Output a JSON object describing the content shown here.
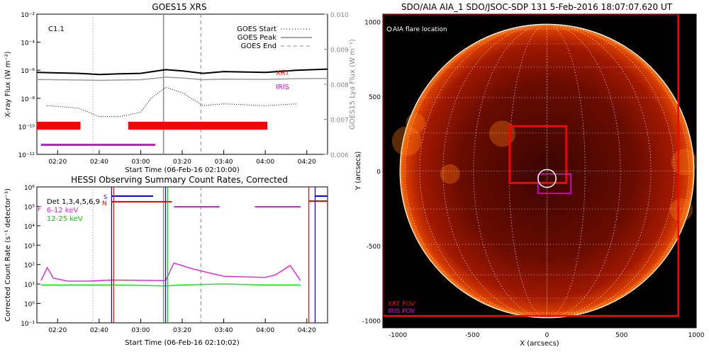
{
  "goes": {
    "title": "GOES15 XRS",
    "xlabel": "Start Time (06-Feb-16 02:10:00)",
    "ylabel_left": "X-ray Flux (W m⁻²)",
    "ylabel_right": "GOES15 Lya Flux (W m⁻²)",
    "flare_class": "C1.1",
    "xtick_labels": [
      "02:20",
      "02:40",
      "03:00",
      "03:20",
      "03:40",
      "04:00",
      "04:20"
    ],
    "ytick_left": [
      "10⁻²",
      "10⁻⁴",
      "10⁻⁶",
      "10⁻⁸",
      "10⁻¹⁰",
      "10⁻¹²"
    ],
    "ytick_right": [
      "0.010",
      "0.009",
      "0.008",
      "0.007",
      "0.006"
    ],
    "legend": {
      "start": "GOES Start",
      "peak": "GOES Peak",
      "end": "GOES End"
    },
    "label_xrt": "XRT",
    "label_iris": "IRIS"
  },
  "hessi": {
    "title": "HESSI Observing Summary Count Rates, Corrected",
    "xlabel": "Start Time (06-Feb-16 02:10:02)",
    "ylabel": "Corrected Count Rate (s⁻¹ detector⁻¹)",
    "xtick_labels": [
      "02:20",
      "02:40",
      "03:00",
      "03:20",
      "03:40",
      "04:00",
      "04:20"
    ],
    "ytick_labels": [
      "10⁶",
      "10⁵",
      "10⁴",
      "10³",
      "10²",
      "10¹",
      "10⁰",
      "10⁻¹"
    ],
    "legend_det": "Det 1,3,4,5,6,9",
    "legend_low": "6-12 keV",
    "legend_high": "12-25 keV",
    "marker_s": "S",
    "marker_n": "N",
    "marker_f": "F"
  },
  "aia": {
    "title": "SDO/AIA AIA_1 SDO/JSOC-SDP 131  5-Feb-2016 18:07:07.620 UT",
    "xlabel": "X (arcsecs)",
    "ylabel": "Y (arcsecs)",
    "xtick_labels": [
      "-1000",
      "-500",
      "0",
      "500",
      "1000"
    ],
    "ytick_labels": [
      "1000",
      "500",
      "0",
      "-500",
      "-1000"
    ],
    "legend_flare": "AIA flare location",
    "legend_xrt": "XRT FOV",
    "legend_iris": "IRIS FOV"
  },
  "colors": {
    "xrt": "#ff0000",
    "iris": "#ee00ee",
    "low_energy": "#e020e0",
    "high_energy": "#00ee00",
    "att": "#0000ff",
    "sun_dark": "#2a0000",
    "sun_mid": "#b81a00",
    "sun_limb": "#ff6a00"
  },
  "chart_data": [
    {
      "type": "line",
      "title": "GOES15 XRS",
      "xlabel": "Start Time (06-Feb-16 02:10:00)",
      "ylabel": "X-ray Flux (W m-2)",
      "ylabel_right": "GOES15 Lya Flux (W m-2)",
      "xlim": [
        "02:10",
        "04:30"
      ],
      "ylim": [
        1e-12,
        0.01
      ],
      "ylim_right": [
        0.006,
        0.01
      ],
      "yscale": "log",
      "series": [
        {
          "name": "",
          "x": [
            "02:10",
            "02:30",
            "02:40",
            "02:50",
            "03:00",
            "03:12",
            "03:20",
            "03:30",
            "03:40",
            "04:00",
            "04:15",
            "04:30"
          ],
          "values": [
            7e-07,
            6e-07,
            5e-07,
            5.5e-07,
            6e-07,
            1.1e-06,
            9e-07,
            6e-07,
            8e-07,
            7e-07,
            1e-06,
            1.2e-06
          ]
        },
        {
          "name": "",
          "x": [
            "02:10",
            "02:30",
            "02:40",
            "02:50",
            "03:00",
            "03:12",
            "03:20",
            "03:30",
            "03:40",
            "04:00",
            "04:15",
            "04:30"
          ],
          "values": [
            2.2e-07,
            2e-07,
            1.9e-07,
            2e-07,
            2.1e-07,
            3.2e-07,
            2.8e-07,
            2.1e-07,
            2.3e-07,
            2.2e-07,
            2.5e-07,
            2.6e-07
          ]
        },
        {
          "name": "",
          "x": [
            "02:15",
            "02:30",
            "02:40",
            "02:50",
            "03:00",
            "03:05",
            "03:12",
            "03:20",
            "03:30",
            "03:40",
            "04:00",
            "04:15"
          ],
          "values": [
            3e-09,
            2e-09,
            5e-10,
            5e-10,
            1e-09,
            1e-08,
            6e-08,
            2.5e-08,
            3e-09,
            4e-09,
            3e-09,
            4e-09
          ]
        }
      ],
      "markers": {
        "GOES Start": "02:37",
        "GOES Peak": "03:11",
        "GOES End": "03:29"
      },
      "xrt_intervals": [
        [
          "02:10",
          "02:31"
        ],
        [
          "02:54",
          "04:01"
        ]
      ],
      "iris_intervals": [
        [
          "02:12",
          "03:07"
        ]
      ],
      "annotations": [
        "C1.1",
        "XRT",
        "IRIS"
      ]
    },
    {
      "type": "line",
      "title": "HESSI Observing Summary Count Rates, Corrected",
      "xlabel": "Start Time (06-Feb-16 02:10:02)",
      "ylabel": "Corrected Count Rate (s-1 detector-1)",
      "xlim": [
        "02:10",
        "04:30"
      ],
      "ylim": [
        0.1,
        1000000.0
      ],
      "yscale": "log",
      "series": [
        {
          "name": "6-12 keV",
          "x": [
            "02:12",
            "02:15",
            "02:18",
            "02:25",
            "02:35",
            "02:46",
            "03:12",
            "03:16",
            "03:25",
            "03:40",
            "04:00",
            "04:05",
            "04:12",
            "04:17"
          ],
          "values": [
            15,
            70,
            20,
            14,
            14,
            16,
            15,
            120,
            60,
            25,
            22,
            30,
            90,
            15
          ]
        },
        {
          "name": "12-25 keV",
          "x": [
            "02:12",
            "02:30",
            "02:46",
            "03:12",
            "03:20",
            "03:40",
            "04:00",
            "04:17"
          ],
          "values": [
            9,
            9,
            9,
            8,
            9,
            10,
            9,
            9
          ]
        }
      ],
      "markers": {
        "GOES Start": "02:37",
        "GOES Peak": "03:11",
        "GOES End": "03:29"
      },
      "annotations": [
        "Det 1,3,4,5,6,9",
        "S",
        "N",
        "F"
      ]
    },
    {
      "type": "heatmap",
      "title": "SDO/AIA AIA_1 SDO/JSOC-SDP 131  5-Feb-2016 18:07:07.620 UT",
      "xlabel": "X (arcsecs)",
      "xlim": [
        -1100,
        1000
      ],
      "ylim": [
        -1050,
        1050
      ],
      "solar_radius_arcsec": 985,
      "xrt_fov": {
        "x": [
          -250,
          130
        ],
        "y": [
          -80,
          300
        ]
      },
      "xrt_fov_large": {
        "x": [
          -1100,
          880
        ],
        "y": [
          -970,
          1050
        ]
      },
      "iris_fov": {
        "x": [
          -60,
          160
        ],
        "y": [
          -150,
          -20
        ]
      },
      "flare_location": {
        "x": 0,
        "y": -50,
        "radius": 60
      },
      "legend": [
        "AIA flare location",
        "XRT FOV",
        "IRIS FOV"
      ]
    }
  ]
}
